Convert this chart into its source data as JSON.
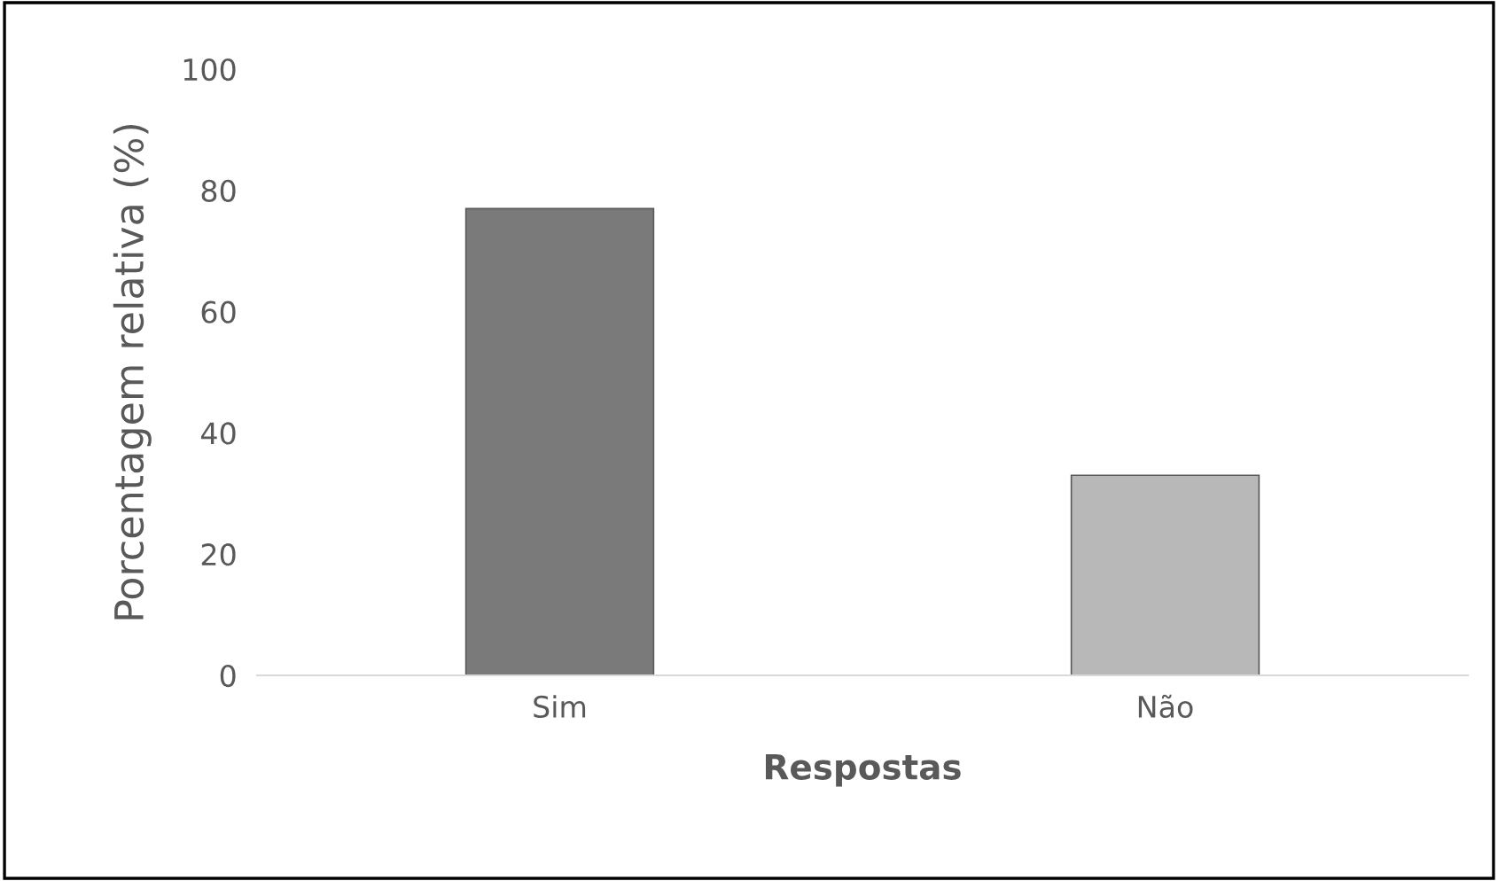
{
  "chart_data": {
    "type": "bar",
    "xlabel": "Respostas",
    "ylabel": "Porcentagem relativa (%)",
    "categories": [
      "Sim",
      "Não"
    ],
    "values": [
      77,
      33
    ],
    "colors": [
      "#7a7a7a",
      "#b8b8b8"
    ],
    "ylim": [
      0,
      100
    ],
    "yticks": [
      0,
      20,
      40,
      60,
      80,
      100
    ],
    "grid": false
  }
}
